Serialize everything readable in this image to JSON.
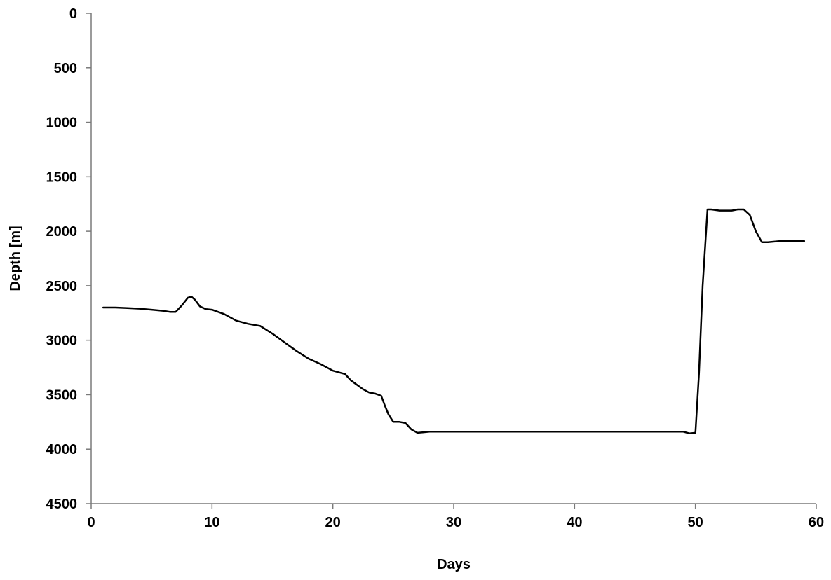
{
  "chart_data": {
    "type": "line",
    "title": "",
    "xlabel": "Days",
    "ylabel": "Depth [m]",
    "xlim": [
      0,
      60
    ],
    "ylim": [
      0,
      4500
    ],
    "y_inverted": true,
    "grid": false,
    "legend": "none",
    "x_ticks": [
      "0",
      "10",
      "20",
      "30",
      "40",
      "50",
      "60"
    ],
    "y_ticks": [
      "0",
      "500",
      "1000",
      "1500",
      "2000",
      "2500",
      "3000",
      "3500",
      "4000",
      "4500"
    ],
    "line_color": "#000000",
    "series": [
      {
        "x": [
          1,
          2,
          3,
          4,
          5,
          6,
          6.5,
          7,
          7.5,
          8,
          8.3,
          8.6,
          9,
          9.5,
          10,
          11,
          12,
          13,
          14,
          15,
          16,
          17,
          18,
          19,
          20,
          21,
          21.5,
          22,
          22.5,
          23,
          23.5,
          24,
          24.3,
          24.6,
          25,
          25.5,
          26,
          26.5,
          27,
          27.5,
          28,
          30,
          35,
          40,
          45,
          49,
          49.5,
          50,
          50.3,
          50.6,
          51,
          51.3,
          52,
          53,
          53.5,
          54,
          54.5,
          55,
          55.5,
          56,
          57,
          58,
          59
        ],
        "y": [
          2700,
          2700,
          2705,
          2710,
          2720,
          2730,
          2740,
          2740,
          2680,
          2610,
          2600,
          2630,
          2690,
          2715,
          2720,
          2760,
          2820,
          2850,
          2870,
          2940,
          3020,
          3100,
          3170,
          3220,
          3280,
          3310,
          3370,
          3410,
          3450,
          3480,
          3490,
          3510,
          3600,
          3680,
          3750,
          3750,
          3760,
          3820,
          3850,
          3845,
          3840,
          3840,
          3840,
          3840,
          3840,
          3840,
          3855,
          3850,
          3300,
          2500,
          1800,
          1800,
          1810,
          1810,
          1800,
          1800,
          1850,
          2000,
          2100,
          2100,
          2090,
          2090,
          2090
        ]
      }
    ]
  }
}
